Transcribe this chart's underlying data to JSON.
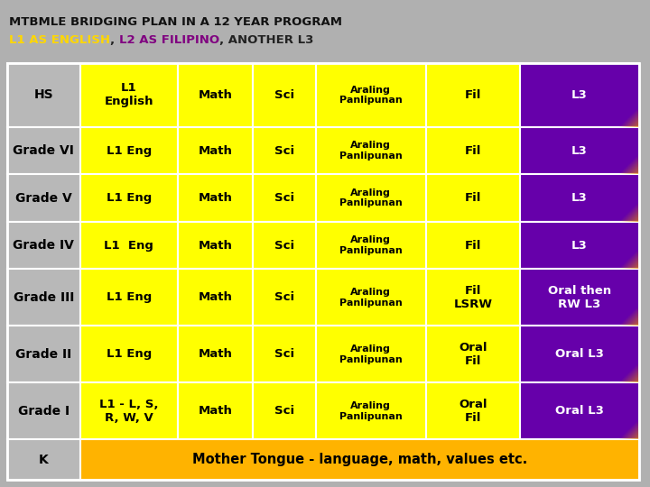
{
  "title_line1": "MTBMLE BRIDGING PLAN IN A 12 YEAR PROGRAM",
  "title_line2_parts": [
    {
      "text": "L1 AS ENGLISH",
      "color": "#FFD700"
    },
    {
      "text": ", ",
      "color": "#222222"
    },
    {
      "text": "L2 AS FILIPINO",
      "color": "#800080"
    },
    {
      "text": ", ANOTHER L3",
      "color": "#222222"
    }
  ],
  "header_bg": "#B0B0B0",
  "yellow": "#FFFF00",
  "purple": "#6600AA",
  "gray": "#B8B8B8",
  "orange_yellow": "#FFB300",
  "rows": [
    {
      "grade": "HS",
      "col1": "L1\nEnglish",
      "col2": "Math",
      "col3": "Sci",
      "col4": "Araling\nPanlipunan",
      "col5": "Fil",
      "col6": "L3",
      "grade_bg": "#B8B8B8"
    },
    {
      "grade": "Grade VI",
      "col1": "L1 Eng",
      "col2": "Math",
      "col3": "Sci",
      "col4": "Araling\nPanlipunan",
      "col5": "Fil",
      "col6": "L3",
      "grade_bg": "#B8B8B8"
    },
    {
      "grade": "Grade V",
      "col1": "L1 Eng",
      "col2": "Math",
      "col3": "Sci",
      "col4": "Araling\nPanlipunan",
      "col5": "Fil",
      "col6": "L3",
      "grade_bg": "#B8B8B8"
    },
    {
      "grade": "Grade IV",
      "col1": "L1  Eng",
      "col2": "Math",
      "col3": "Sci",
      "col4": "Araling\nPanlipunan",
      "col5": "Fil",
      "col6": "L3",
      "grade_bg": "#B8B8B8"
    },
    {
      "grade": "Grade III",
      "col1": "L1 Eng",
      "col2": "Math",
      "col3": "Sci",
      "col4": "Araling\nPanlipunan",
      "col5": "Fil\nLSRW",
      "col6": "Oral then\nRW L3",
      "grade_bg": "#B8B8B8"
    },
    {
      "grade": "Grade II",
      "col1": "L1 Eng",
      "col2": "Math",
      "col3": "Sci",
      "col4": "Araling\nPanlipunan",
      "col5": "Oral\nFil",
      "col6": "Oral L3",
      "grade_bg": "#B8B8B8"
    },
    {
      "grade": "Grade I",
      "col1": "L1 - L, S,\nR, W, V",
      "col2": "Math",
      "col3": "Sci",
      "col4": "Araling\nPanlipunan",
      "col5": "Oral\nFil",
      "col6": "Oral L3",
      "grade_bg": "#B8B8B8"
    },
    {
      "grade": "K",
      "col1": "Mother Tongue - language, math, values etc.",
      "col2": null,
      "col3": null,
      "col4": null,
      "col5": null,
      "col6": null,
      "grade_bg": "#B8B8B8"
    }
  ]
}
